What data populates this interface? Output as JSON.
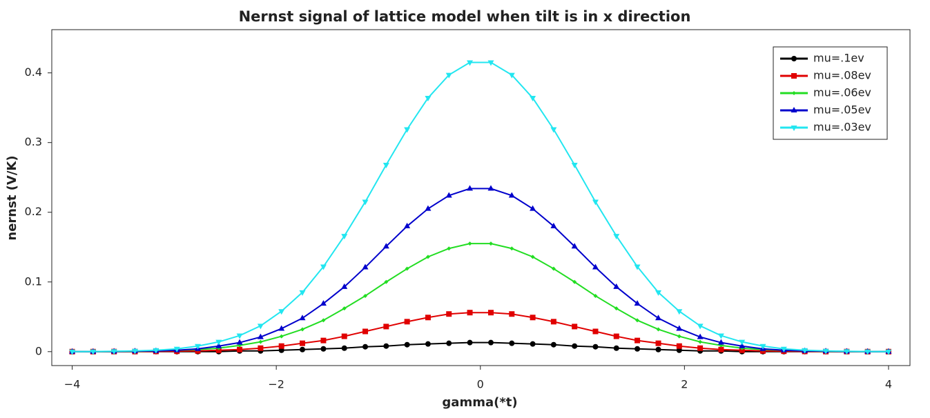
{
  "chart_data": {
    "type": "line",
    "title": "Nernst signal of lattice model when tilt is in x direction",
    "xlabel": "gamma(*t)",
    "ylabel": "nernst (V/K)",
    "x": [
      -4,
      -3.795,
      -3.59,
      -3.385,
      -3.179,
      -2.974,
      -2.769,
      -2.564,
      -2.359,
      -2.154,
      -1.949,
      -1.744,
      -1.538,
      -1.333,
      -1.128,
      -0.923,
      -0.718,
      -0.513,
      -0.308,
      -0.103,
      0.103,
      0.308,
      0.513,
      0.718,
      0.923,
      1.128,
      1.333,
      1.538,
      1.744,
      1.949,
      2.154,
      2.359,
      2.564,
      2.769,
      2.974,
      3.179,
      3.385,
      3.59,
      3.795,
      4
    ],
    "series": [
      {
        "name": "mu=.1ev",
        "color": "#000000",
        "marker": "circle",
        "values": [
          0,
          0,
          0,
          0,
          0,
          0,
          0,
          0,
          0.001,
          0.001,
          0.002,
          0.003,
          0.004,
          0.005,
          0.007,
          0.008,
          0.01,
          0.011,
          0.012,
          0.013,
          0.013,
          0.012,
          0.011,
          0.01,
          0.008,
          0.007,
          0.005,
          0.004,
          0.003,
          0.002,
          0.001,
          0.001,
          0,
          0,
          0,
          0,
          0,
          0,
          0,
          0
        ]
      },
      {
        "name": "mu=.08ev",
        "color": "#e00000",
        "marker": "square",
        "values": [
          0,
          0,
          0.0001,
          0.0001,
          0.0003,
          0.0006,
          0.001,
          0.002,
          0.003,
          0.005,
          0.008,
          0.012,
          0.016,
          0.022,
          0.029,
          0.036,
          0.043,
          0.049,
          0.054,
          0.056,
          0.056,
          0.054,
          0.049,
          0.043,
          0.036,
          0.029,
          0.022,
          0.016,
          0.012,
          0.008,
          0.005,
          0.003,
          0.002,
          0.001,
          0.0006,
          0.0003,
          0.0001,
          0.0001,
          0,
          0
        ]
      },
      {
        "name": "mu=.06ev",
        "color": "#22dd22",
        "marker": "diamond",
        "values": [
          0,
          0.0001,
          0.0002,
          0.0004,
          0.001,
          0.002,
          0.003,
          0.005,
          0.009,
          0.014,
          0.022,
          0.032,
          0.045,
          0.062,
          0.08,
          0.1,
          0.119,
          0.136,
          0.148,
          0.155,
          0.155,
          0.148,
          0.136,
          0.119,
          0.1,
          0.08,
          0.062,
          0.045,
          0.032,
          0.022,
          0.014,
          0.009,
          0.005,
          0.003,
          0.002,
          0.001,
          0.0004,
          0.0002,
          0.0001,
          0
        ]
      },
      {
        "name": "mu=.05ev",
        "color": "#0000cc",
        "marker": "up",
        "values": [
          0,
          0.0001,
          0.0003,
          0.0006,
          0.001,
          0.002,
          0.004,
          0.008,
          0.013,
          0.021,
          0.033,
          0.048,
          0.069,
          0.093,
          0.121,
          0.151,
          0.18,
          0.205,
          0.224,
          0.234,
          0.234,
          0.224,
          0.205,
          0.18,
          0.151,
          0.121,
          0.093,
          0.069,
          0.048,
          0.033,
          0.021,
          0.013,
          0.008,
          0.004,
          0.002,
          0.001,
          0.0006,
          0.0003,
          0.0001,
          0
        ]
      },
      {
        "name": "mu=.03ev",
        "color": "#22e6f0",
        "marker": "down",
        "values": [
          0.0001,
          0.0002,
          0.0005,
          0.001,
          0.002,
          0.004,
          0.008,
          0.014,
          0.023,
          0.037,
          0.058,
          0.085,
          0.122,
          0.166,
          0.215,
          0.268,
          0.319,
          0.364,
          0.397,
          0.415,
          0.415,
          0.397,
          0.364,
          0.319,
          0.268,
          0.215,
          0.166,
          0.122,
          0.085,
          0.058,
          0.037,
          0.023,
          0.014,
          0.008,
          0.004,
          0.002,
          0.001,
          0.0005,
          0.0002,
          0.0001
        ]
      }
    ],
    "xlim": [
      -4.2,
      4.21
    ],
    "ylim": [
      -0.02,
      0.462
    ],
    "xticks": [
      {
        "value": -4,
        "label": "−4"
      },
      {
        "value": -2,
        "label": "−2"
      },
      0,
      2,
      4
    ],
    "yticks": [
      0,
      0.1,
      0.2,
      0.3,
      0.4
    ],
    "legend": "upper right",
    "grid": false
  }
}
